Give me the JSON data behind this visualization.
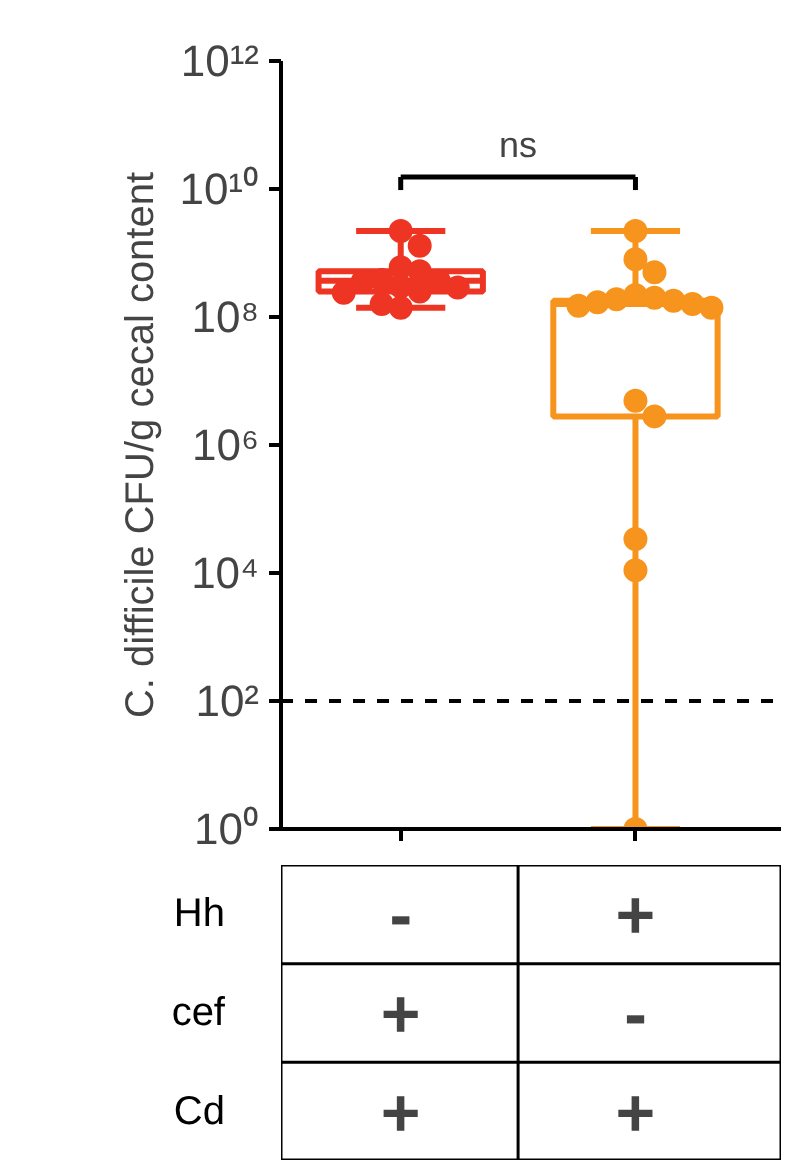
{
  "chart_data": {
    "type": "box",
    "ylabel": "C. difficile CFU/g cecal content",
    "categories": [
      null,
      null
    ],
    "log": "y",
    "ylim": [
      1,
      1000000000000.0
    ],
    "yticks": [
      {
        "value": 1,
        "label": "10⁰"
      },
      {
        "value": 100,
        "label": "10²"
      },
      {
        "value": 10000,
        "label": "10⁴"
      },
      {
        "value": 1000000,
        "label": "10⁶"
      },
      {
        "value": 100000000,
        "label": "10⁸"
      },
      {
        "value": 10000000000,
        "label": "10¹⁰"
      },
      {
        "value": 1000000000000,
        "label": "10¹²"
      }
    ],
    "grid": false,
    "colors": [
      "#ee3524",
      "#f7941d"
    ],
    "boxes": [
      {
        "low": 140000000.0,
        "q1": 250000000.0,
        "median": 370000000.0,
        "q3": 520000000.0,
        "high": 2200000000.0,
        "outliers": [
          2200000000.0,
          1300000000.0,
          600000000.0,
          520000000.0,
          380000000.0,
          370000000.0,
          360000000.0,
          300000000.0,
          290000000.0,
          250000000.0,
          240000000.0,
          160000000.0,
          140000000.0
        ]
      },
      {
        "low": 1,
        "q1": 2800000.0,
        "median": 160000000.0,
        "q3": 180000000.0,
        "high": 2200000000.0,
        "outliers": [
          2200000000.0,
          800000000.0,
          500000000.0,
          220000000.0,
          200000000.0,
          190000000.0,
          180000000.0,
          170000000.0,
          160000000.0,
          150000000.0,
          140000000.0,
          4900000.0,
          2800000.0,
          34000.0,
          11000.0,
          1
        ]
      }
    ],
    "marker": "circle",
    "ref_lines": [
      {
        "axis": "y",
        "value": 100,
        "color": "#000000",
        "line_style": "dashed"
      }
    ],
    "annotations": [
      "ns",
      "Hh",
      "-",
      "+",
      "cef",
      "+",
      "-",
      "Cd",
      "+",
      "+"
    ]
  }
}
